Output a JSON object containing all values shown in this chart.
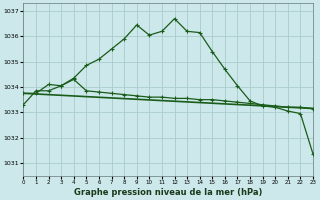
{
  "xlabel": "Graphe pression niveau de la mer (hPa)",
  "bg_color": "#cce8ea",
  "grid_color": "#aacccc",
  "line_color": "#1a5c1a",
  "xmin": 0,
  "xmax": 23,
  "ymin": 1030.5,
  "ymax": 1037.3,
  "yticks": [
    1031,
    1032,
    1033,
    1034,
    1035,
    1036,
    1037
  ],
  "series1_x": [
    0,
    1,
    2,
    3,
    4,
    5,
    6,
    7,
    8,
    9,
    10,
    11,
    12,
    13,
    14,
    15,
    16,
    17,
    18,
    19,
    20,
    21,
    22,
    23
  ],
  "series1_y": [
    1033.3,
    1033.85,
    1033.85,
    1034.05,
    1034.35,
    1034.85,
    1035.1,
    1035.5,
    1035.9,
    1036.45,
    1036.05,
    1036.2,
    1036.7,
    1036.2,
    1036.15,
    1035.4,
    1034.7,
    1034.05,
    1033.45,
    1033.25,
    1033.2,
    1033.05,
    1032.95,
    1031.35
  ],
  "series2_x": [
    0,
    1,
    2,
    3,
    4,
    5,
    6,
    7,
    8,
    9,
    10,
    11,
    12,
    13,
    14,
    15,
    16,
    17,
    18,
    19,
    20,
    21,
    22,
    23
  ],
  "series2_y": [
    1033.75,
    1033.75,
    1034.1,
    1034.05,
    1034.3,
    1033.85,
    1033.8,
    1033.75,
    1033.7,
    1033.65,
    1033.6,
    1033.6,
    1033.55,
    1033.55,
    1033.5,
    1033.5,
    1033.45,
    1033.4,
    1033.35,
    1033.3,
    1033.25,
    1033.2,
    1033.2,
    1033.15
  ],
  "series3_x": [
    0,
    23
  ],
  "series3_y": [
    1033.75,
    1033.15
  ]
}
